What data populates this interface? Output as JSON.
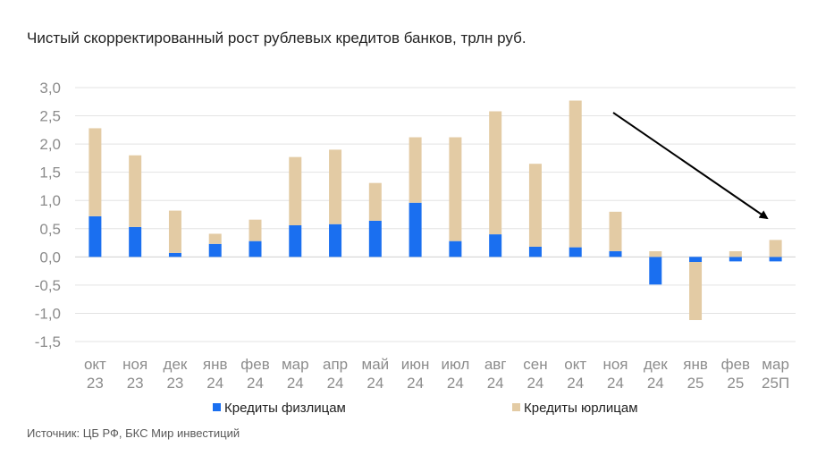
{
  "chart_data": {
    "type": "bar",
    "stacked": true,
    "title": "Чистый скорректированный рост рублевых кредитов банков, трлн руб.",
    "categories": [
      [
        "окт",
        "23"
      ],
      [
        "ноя",
        "23"
      ],
      [
        "дек",
        "23"
      ],
      [
        "янв",
        "24"
      ],
      [
        "фев",
        "24"
      ],
      [
        "мар",
        "24"
      ],
      [
        "апр",
        "24"
      ],
      [
        "май",
        "24"
      ],
      [
        "июн",
        "24"
      ],
      [
        "июл",
        "24"
      ],
      [
        "авг",
        "24"
      ],
      [
        "сен",
        "24"
      ],
      [
        "окт",
        "24"
      ],
      [
        "ноя",
        "24"
      ],
      [
        "дек",
        "24"
      ],
      [
        "янв",
        "25"
      ],
      [
        "фев",
        "25"
      ],
      [
        "мар",
        "25П"
      ]
    ],
    "series": [
      {
        "name": "Кредиты физлицам",
        "color": "#1a6ff0",
        "values": [
          0.72,
          0.53,
          0.07,
          0.23,
          0.28,
          0.56,
          0.58,
          0.64,
          0.96,
          0.28,
          0.4,
          0.18,
          0.17,
          0.1,
          -0.49,
          -0.09,
          -0.08,
          -0.08
        ]
      },
      {
        "name": "Кредиты юрлицам",
        "color": "#e3cba4",
        "values": [
          1.56,
          1.27,
          0.75,
          0.18,
          0.38,
          1.21,
          1.32,
          0.67,
          1.16,
          1.84,
          2.18,
          1.47,
          2.6,
          0.7,
          0.1,
          -1.03,
          0.1,
          0.3
        ]
      }
    ],
    "y_ticks": [
      "3,0",
      "2,5",
      "2,0",
      "1,5",
      "1,0",
      "0,5",
      "0,0",
      "-0,5",
      "-1,0",
      "-1,5"
    ],
    "ylim": [
      -1.5,
      3.0
    ],
    "grid": true,
    "legend_position": "bottom",
    "annotation": "arrow pointing down toward last category",
    "source": "Источник: ЦБ РФ, БКС Мир инвестиций"
  }
}
